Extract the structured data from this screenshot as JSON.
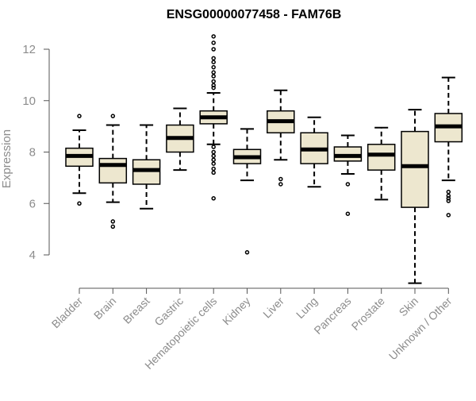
{
  "chart_data": {
    "type": "boxplot",
    "title": "ENSG00000077458 - FAM76B",
    "xlabel": "",
    "ylabel": "Expression",
    "ylim": [
      2.8,
      12.6
    ],
    "yticks": [
      4,
      6,
      8,
      10,
      12
    ],
    "grid": false,
    "colors": {
      "box_fill": "#EDE7CF",
      "stroke": "#000000",
      "axis_text": "#8C8C8C"
    },
    "categories": [
      "Bladder",
      "Brain",
      "Breast",
      "Gastric",
      "Hematopoietic cells",
      "Kidney",
      "Liver",
      "Lung",
      "Pancreas",
      "Prostate",
      "Skin",
      "Unknown / Other"
    ],
    "boxes": [
      {
        "name": "Bladder",
        "whisker_low": 6.4,
        "q1": 7.45,
        "median": 7.85,
        "q3": 8.15,
        "whisker_high": 8.85,
        "outliers": [
          6.0,
          9.4
        ]
      },
      {
        "name": "Brain",
        "whisker_low": 6.05,
        "q1": 6.8,
        "median": 7.5,
        "q3": 7.75,
        "whisker_high": 9.05,
        "outliers": [
          5.1,
          5.3,
          9.4
        ]
      },
      {
        "name": "Breast",
        "whisker_low": 5.8,
        "q1": 6.75,
        "median": 7.3,
        "q3": 7.7,
        "whisker_high": 9.05,
        "outliers": []
      },
      {
        "name": "Gastric",
        "whisker_low": 7.3,
        "q1": 8.0,
        "median": 8.55,
        "q3": 9.05,
        "whisker_high": 9.7,
        "outliers": []
      },
      {
        "name": "Hematopoietic cells",
        "whisker_low": 8.3,
        "q1": 9.1,
        "median": 9.35,
        "q3": 9.6,
        "whisker_high": 10.3,
        "outliers": [
          6.2,
          7.2,
          7.35,
          7.55,
          7.7,
          7.85,
          8.0,
          8.2,
          10.5,
          10.6,
          10.75,
          10.95,
          11.1,
          11.3,
          11.5,
          11.65,
          12.0,
          12.25,
          12.5
        ]
      },
      {
        "name": "Kidney",
        "whisker_low": 6.9,
        "q1": 7.55,
        "median": 7.8,
        "q3": 8.1,
        "whisker_high": 8.9,
        "outliers": [
          4.1
        ]
      },
      {
        "name": "Liver",
        "whisker_low": 7.7,
        "q1": 8.75,
        "median": 9.2,
        "q3": 9.6,
        "whisker_high": 10.4,
        "outliers": [
          6.75,
          6.95
        ]
      },
      {
        "name": "Lung",
        "whisker_low": 6.65,
        "q1": 7.55,
        "median": 8.1,
        "q3": 8.75,
        "whisker_high": 9.35,
        "outliers": []
      },
      {
        "name": "Pancreas",
        "whisker_low": 7.15,
        "q1": 7.65,
        "median": 7.85,
        "q3": 8.2,
        "whisker_high": 8.65,
        "outliers": [
          5.6,
          6.75
        ]
      },
      {
        "name": "Prostate",
        "whisker_low": 6.15,
        "q1": 7.3,
        "median": 7.9,
        "q3": 8.3,
        "whisker_high": 8.95,
        "outliers": []
      },
      {
        "name": "Skin",
        "whisker_low": 2.9,
        "q1": 5.85,
        "median": 7.45,
        "q3": 8.8,
        "whisker_high": 9.65,
        "outliers": []
      },
      {
        "name": "Unknown / Other",
        "whisker_low": 6.9,
        "q1": 8.4,
        "median": 9.0,
        "q3": 9.5,
        "whisker_high": 10.9,
        "outliers": [
          5.55,
          6.1,
          6.2,
          6.3,
          6.45
        ]
      }
    ]
  }
}
